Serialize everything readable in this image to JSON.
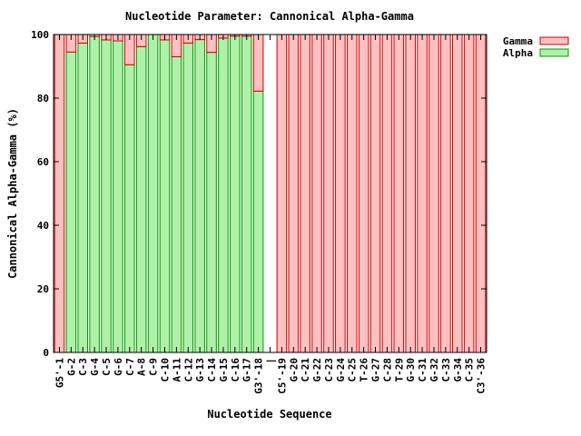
{
  "chart_data": {
    "type": "bar",
    "title": "Nucleotide Parameter: Cannonical Alpha-Gamma",
    "xlabel": "Nucleotide Sequence",
    "ylabel": "Cannonical Alpha-Gamma (%)",
    "ylim": [
      0,
      100
    ],
    "yticks": [
      0,
      20,
      40,
      60,
      80,
      100
    ],
    "stacked": true,
    "legend_position": "top-right",
    "categories": [
      "G5'-1",
      "G-2",
      "C-3",
      "G-4",
      "C-5",
      "G-6",
      "C-7",
      "A-8",
      "C-9",
      "C-10",
      "A-11",
      "C-12",
      "G-13",
      "C-14",
      "G-15",
      "C-16",
      "G-17",
      "G3'-18",
      "|",
      "C5'-19",
      "G-20",
      "C-21",
      "G-22",
      "C-23",
      "G-24",
      "C-25",
      "T-26",
      "G-27",
      "C-28",
      "T-29",
      "G-30",
      "C-31",
      "G-32",
      "C-33",
      "G-34",
      "C-35",
      "C3'-36"
    ],
    "series": [
      {
        "name": "Alpha",
        "color": "#b0f0a8",
        "stroke": "#009900",
        "values": [
          0,
          94.5,
          97.3,
          99.4,
          98.3,
          98.0,
          90.5,
          96.2,
          100,
          98.3,
          93.0,
          97.3,
          98.4,
          94.4,
          98.9,
          99.5,
          99.5,
          82.2,
          null,
          0,
          0,
          0,
          0,
          0,
          0,
          0,
          0,
          0,
          0,
          0,
          0,
          0,
          0,
          0,
          0,
          0,
          0
        ]
      },
      {
        "name": "Gamma",
        "color": "#ffc0c0",
        "stroke": "#cc0000",
        "values": [
          100,
          5.5,
          2.7,
          0.6,
          1.7,
          2.0,
          9.5,
          3.8,
          0,
          1.7,
          7.0,
          2.7,
          1.6,
          5.6,
          1.1,
          0.5,
          0.5,
          17.8,
          null,
          100,
          100,
          100,
          100,
          100,
          100,
          100,
          100,
          100,
          100,
          100,
          100,
          100,
          100,
          100,
          100,
          100,
          100
        ]
      }
    ]
  }
}
